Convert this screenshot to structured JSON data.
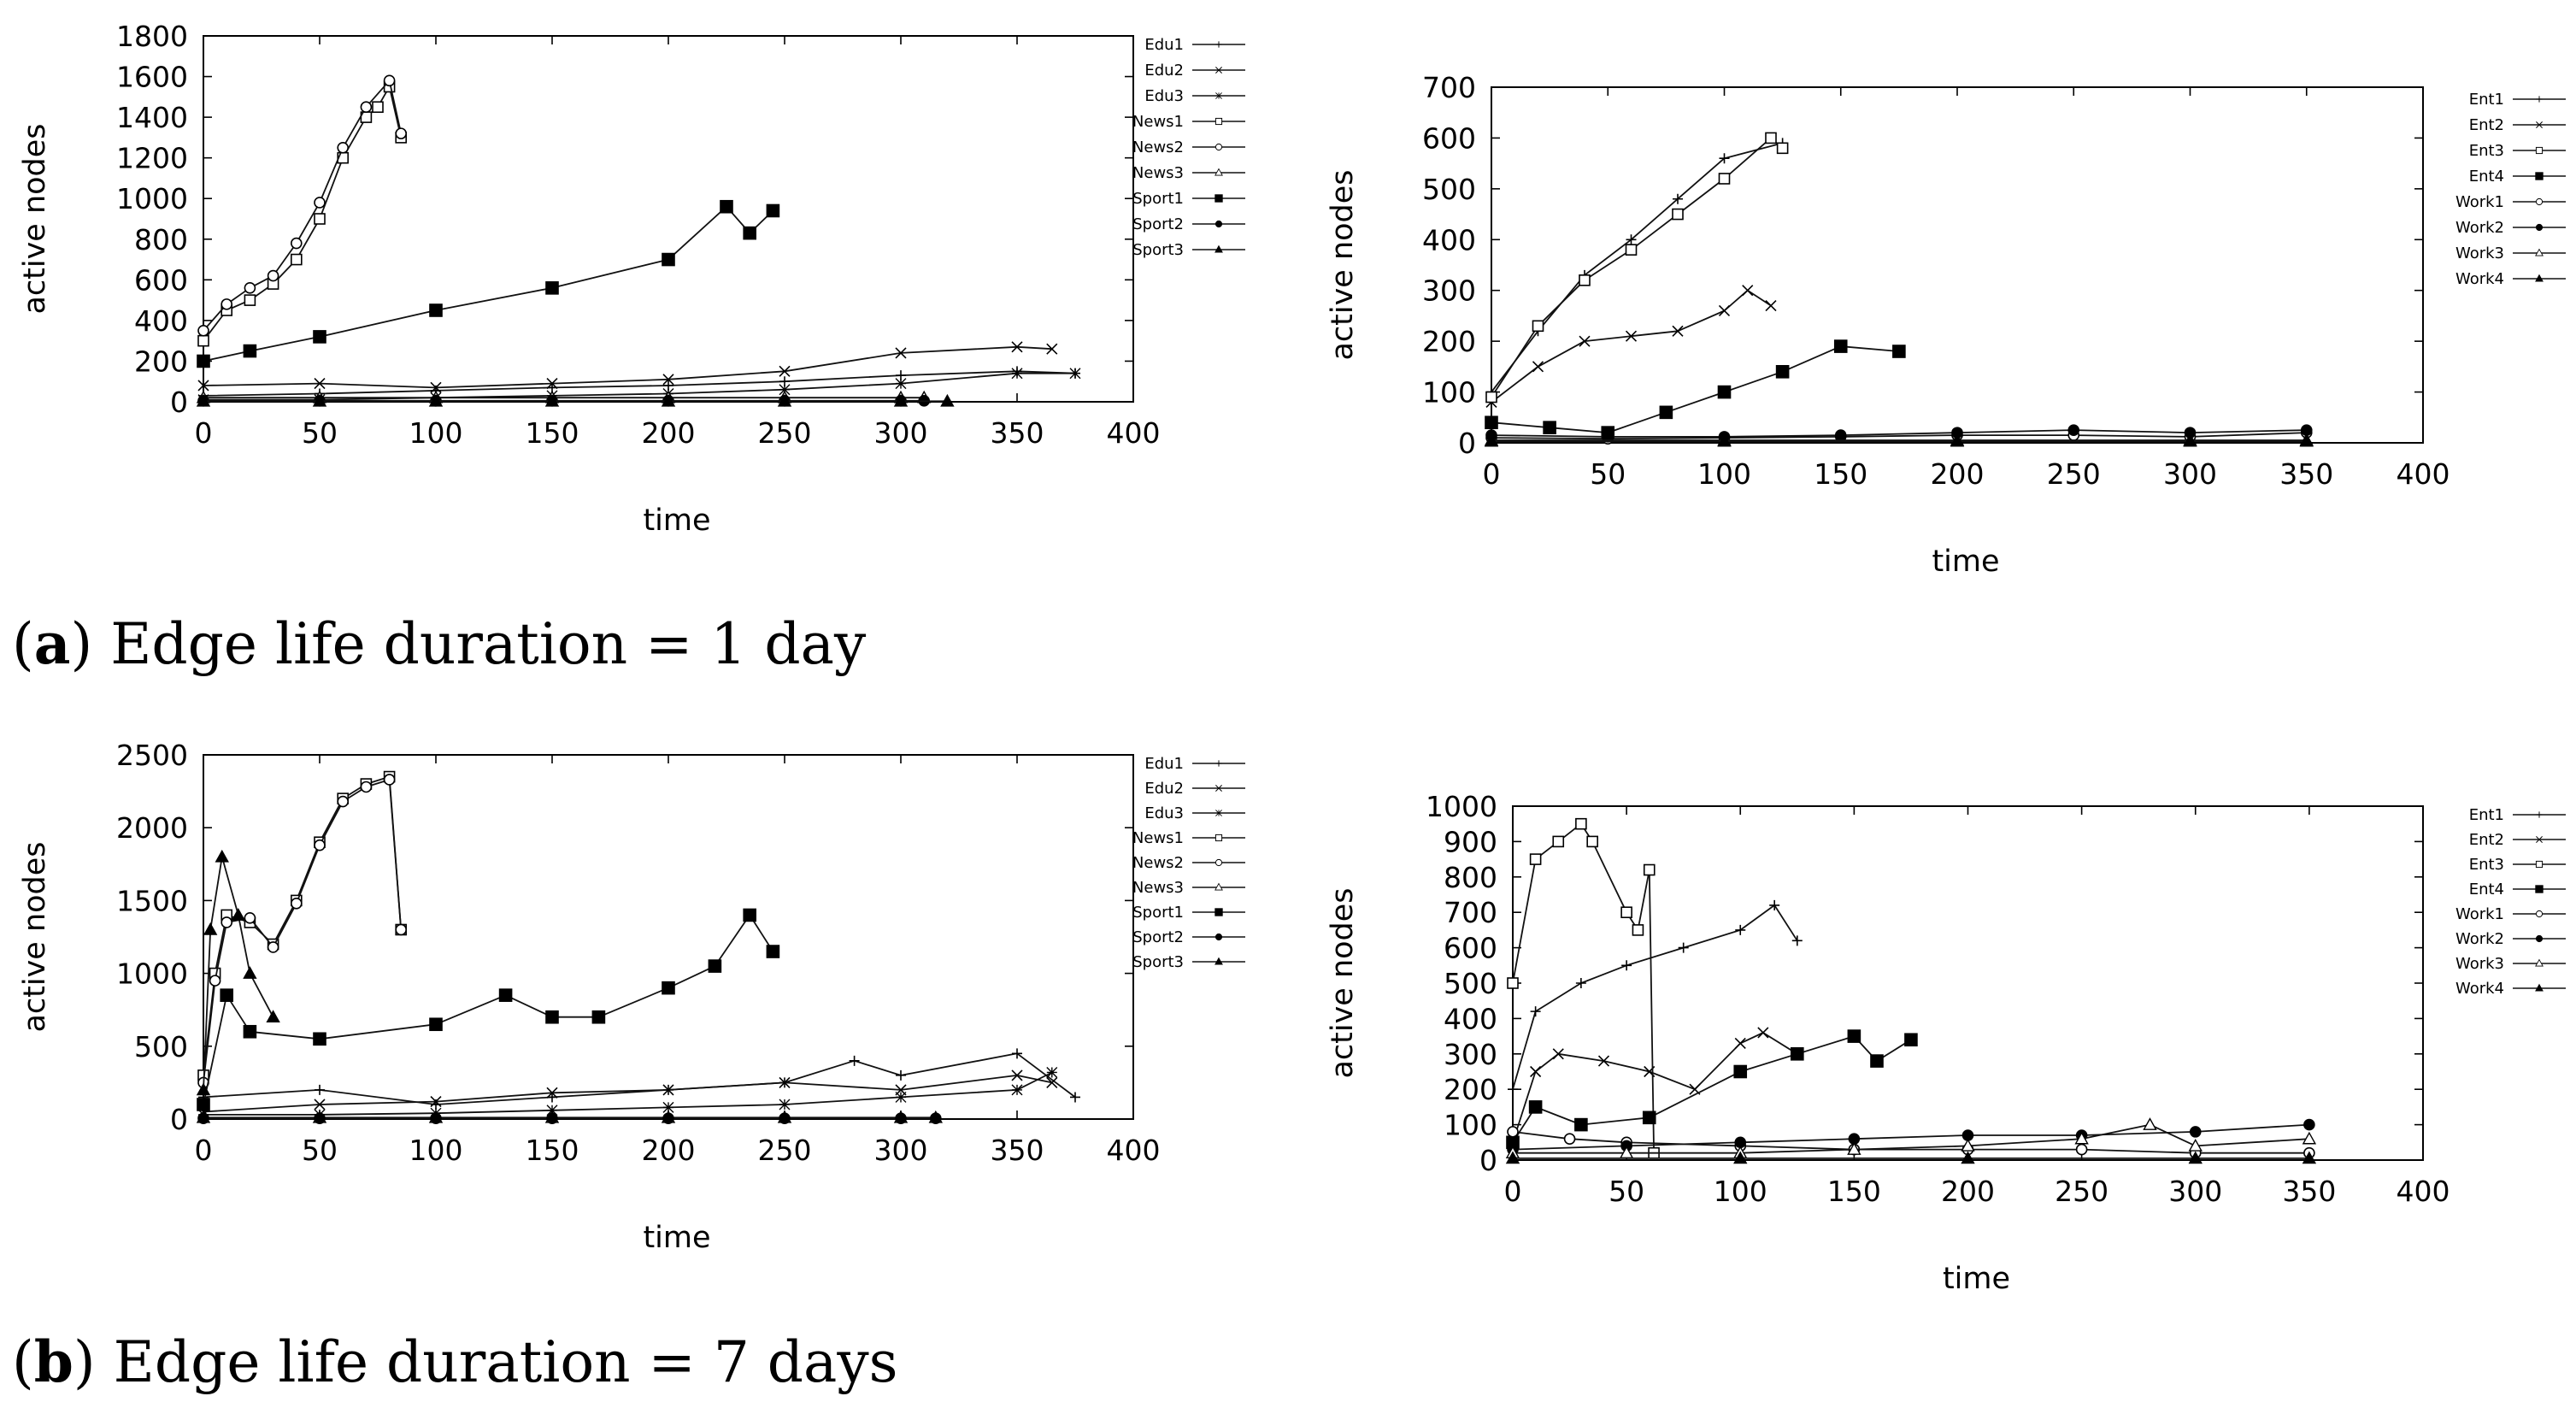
{
  "captions": {
    "a": {
      "label": "a",
      "text": "Edge life duration = 1 day"
    },
    "b": {
      "label": "b",
      "text": "Edge life duration = 7 days"
    }
  },
  "chart_data": [
    {
      "id": "a-left",
      "type": "line",
      "title": "",
      "xlabel": "time",
      "ylabel": "active nodes",
      "xlim": [
        0,
        400
      ],
      "ylim": [
        0,
        1800
      ],
      "xticks": [
        0,
        50,
        100,
        150,
        200,
        250,
        300,
        350,
        400
      ],
      "yticks": [
        0,
        200,
        400,
        600,
        800,
        1000,
        1200,
        1400,
        1600,
        1800
      ],
      "series": [
        {
          "name": "Edu1",
          "marker": "plus",
          "x": [
            0,
            50,
            100,
            150,
            200,
            250,
            300,
            350,
            375
          ],
          "y": [
            30,
            40,
            55,
            70,
            80,
            100,
            130,
            150,
            140
          ]
        },
        {
          "name": "Edu2",
          "marker": "cross",
          "x": [
            0,
            50,
            100,
            150,
            200,
            250,
            300,
            350,
            365
          ],
          "y": [
            80,
            90,
            70,
            90,
            110,
            150,
            240,
            270,
            260
          ]
        },
        {
          "name": "Edu3",
          "marker": "star",
          "x": [
            0,
            50,
            100,
            150,
            200,
            250,
            300,
            350,
            375
          ],
          "y": [
            10,
            10,
            20,
            30,
            40,
            60,
            90,
            140,
            140
          ]
        },
        {
          "name": "News1",
          "marker": "square-open",
          "x": [
            0,
            10,
            20,
            30,
            40,
            50,
            60,
            70,
            75,
            80,
            85
          ],
          "y": [
            300,
            450,
            500,
            580,
            700,
            900,
            1200,
            1400,
            1450,
            1550,
            1300
          ]
        },
        {
          "name": "News2",
          "marker": "circle-open",
          "x": [
            0,
            10,
            20,
            30,
            40,
            50,
            60,
            70,
            80,
            85
          ],
          "y": [
            350,
            480,
            560,
            620,
            780,
            980,
            1250,
            1450,
            1580,
            1320
          ]
        },
        {
          "name": "News3",
          "marker": "triangle-open",
          "x": [
            0,
            50,
            100,
            150,
            200,
            250,
            300,
            310
          ],
          "y": [
            20,
            20,
            20,
            20,
            20,
            20,
            20,
            20
          ]
        },
        {
          "name": "Sport1",
          "marker": "square-filled",
          "x": [
            0,
            20,
            50,
            100,
            150,
            200,
            225,
            235,
            245
          ],
          "y": [
            200,
            250,
            320,
            450,
            560,
            700,
            960,
            830,
            940
          ]
        },
        {
          "name": "Sport2",
          "marker": "circle-filled",
          "x": [
            0,
            50,
            100,
            150,
            200,
            250,
            300,
            310
          ],
          "y": [
            5,
            5,
            5,
            5,
            5,
            5,
            5,
            5
          ]
        },
        {
          "name": "Sport3",
          "marker": "triangle-filled",
          "x": [
            0,
            50,
            100,
            150,
            200,
            250,
            300,
            320
          ],
          "y": [
            3,
            3,
            3,
            3,
            3,
            3,
            3,
            3
          ]
        }
      ]
    },
    {
      "id": "a-right",
      "type": "line",
      "title": "",
      "xlabel": "time",
      "ylabel": "active nodes",
      "xlim": [
        0,
        400
      ],
      "ylim": [
        0,
        700
      ],
      "xticks": [
        0,
        50,
        100,
        150,
        200,
        250,
        300,
        350,
        400
      ],
      "yticks": [
        0,
        100,
        200,
        300,
        400,
        500,
        600,
        700
      ],
      "series": [
        {
          "name": "Ent1",
          "marker": "plus",
          "x": [
            0,
            20,
            40,
            60,
            80,
            100,
            125
          ],
          "y": [
            100,
            220,
            330,
            400,
            480,
            560,
            590
          ]
        },
        {
          "name": "Ent2",
          "marker": "cross",
          "x": [
            0,
            20,
            40,
            60,
            80,
            100,
            110,
            120
          ],
          "y": [
            80,
            150,
            200,
            210,
            220,
            260,
            300,
            270
          ]
        },
        {
          "name": "Ent3",
          "marker": "square-open",
          "x": [
            0,
            20,
            40,
            60,
            80,
            100,
            120,
            125
          ],
          "y": [
            90,
            230,
            320,
            380,
            450,
            520,
            600,
            580
          ]
        },
        {
          "name": "Ent4",
          "marker": "square-filled",
          "x": [
            0,
            25,
            50,
            75,
            100,
            125,
            150,
            175
          ],
          "y": [
            40,
            30,
            20,
            60,
            100,
            140,
            190,
            180
          ]
        },
        {
          "name": "Work1",
          "marker": "circle-open",
          "x": [
            0,
            50,
            100,
            150,
            200,
            250,
            300,
            350
          ],
          "y": [
            10,
            8,
            10,
            12,
            15,
            15,
            12,
            20
          ]
        },
        {
          "name": "Work2",
          "marker": "circle-filled",
          "x": [
            0,
            50,
            100,
            150,
            200,
            250,
            300,
            350
          ],
          "y": [
            15,
            12,
            12,
            15,
            20,
            25,
            20,
            25
          ]
        },
        {
          "name": "Work3",
          "marker": "triangle-open",
          "x": [
            0,
            100,
            200,
            300,
            350
          ],
          "y": [
            5,
            5,
            5,
            5,
            5
          ]
        },
        {
          "name": "Work4",
          "marker": "triangle-filled",
          "x": [
            0,
            100,
            200,
            300,
            350
          ],
          "y": [
            3,
            3,
            3,
            3,
            3
          ]
        }
      ]
    },
    {
      "id": "b-left",
      "type": "line",
      "title": "",
      "xlabel": "time",
      "ylabel": "active nodes",
      "xlim": [
        0,
        400
      ],
      "ylim": [
        0,
        2500
      ],
      "xticks": [
        0,
        50,
        100,
        150,
        200,
        250,
        300,
        350,
        400
      ],
      "yticks": [
        0,
        500,
        1000,
        1500,
        2000,
        2500
      ],
      "series": [
        {
          "name": "Edu1",
          "marker": "plus",
          "x": [
            0,
            50,
            100,
            150,
            200,
            250,
            280,
            300,
            350,
            375
          ],
          "y": [
            150,
            200,
            100,
            150,
            200,
            250,
            400,
            300,
            450,
            150
          ]
        },
        {
          "name": "Edu2",
          "marker": "cross",
          "x": [
            0,
            50,
            100,
            150,
            200,
            250,
            300,
            350,
            365
          ],
          "y": [
            50,
            100,
            120,
            180,
            200,
            250,
            200,
            300,
            250
          ]
        },
        {
          "name": "Edu3",
          "marker": "star",
          "x": [
            0,
            50,
            100,
            150,
            200,
            250,
            300,
            350,
            365
          ],
          "y": [
            30,
            30,
            40,
            60,
            80,
            100,
            150,
            200,
            320
          ]
        },
        {
          "name": "News1",
          "marker": "square-open",
          "x": [
            0,
            5,
            10,
            20,
            30,
            40,
            50,
            60,
            70,
            80,
            85
          ],
          "y": [
            300,
            1000,
            1400,
            1350,
            1200,
            1500,
            1900,
            2200,
            2300,
            2350,
            1300
          ]
        },
        {
          "name": "News2",
          "marker": "circle-open",
          "x": [
            0,
            5,
            10,
            20,
            30,
            40,
            50,
            60,
            70,
            80,
            85
          ],
          "y": [
            250,
            950,
            1350,
            1380,
            1180,
            1480,
            1880,
            2180,
            2280,
            2330,
            1300
          ]
        },
        {
          "name": "News3",
          "marker": "triangle-open",
          "x": [
            0,
            50,
            100,
            150,
            200,
            250,
            300,
            315
          ],
          "y": [
            10,
            10,
            10,
            10,
            10,
            10,
            10,
            10
          ]
        },
        {
          "name": "Sport1",
          "marker": "square-filled",
          "x": [
            0,
            10,
            20,
            50,
            100,
            130,
            150,
            170,
            200,
            220,
            235,
            245
          ],
          "y": [
            100,
            850,
            600,
            550,
            650,
            850,
            700,
            700,
            900,
            1050,
            1400,
            1150
          ]
        },
        {
          "name": "Sport2",
          "marker": "circle-filled",
          "x": [
            0,
            50,
            100,
            150,
            200,
            250,
            300,
            315
          ],
          "y": [
            5,
            5,
            5,
            5,
            5,
            5,
            5,
            5
          ]
        },
        {
          "name": "Sport3",
          "marker": "triangle-filled",
          "x": [
            0,
            3,
            8,
            15,
            20,
            30
          ],
          "y": [
            200,
            1300,
            1800,
            1400,
            1000,
            700
          ]
        }
      ]
    },
    {
      "id": "b-right",
      "type": "line",
      "title": "",
      "xlabel": "time",
      "ylabel": "active nodes",
      "xlim": [
        0,
        400
      ],
      "ylim": [
        0,
        1000
      ],
      "xticks": [
        0,
        50,
        100,
        150,
        200,
        250,
        300,
        350,
        400
      ],
      "yticks": [
        0,
        100,
        200,
        300,
        400,
        500,
        600,
        700,
        800,
        900,
        1000
      ],
      "series": [
        {
          "name": "Ent1",
          "marker": "plus",
          "x": [
            0,
            10,
            30,
            50,
            75,
            100,
            115,
            125
          ],
          "y": [
            200,
            420,
            500,
            550,
            600,
            650,
            720,
            620
          ]
        },
        {
          "name": "Ent2",
          "marker": "cross",
          "x": [
            0,
            10,
            20,
            40,
            60,
            80,
            100,
            110,
            125
          ],
          "y": [
            50,
            250,
            300,
            280,
            250,
            200,
            330,
            360,
            300
          ]
        },
        {
          "name": "Ent3",
          "marker": "square-open",
          "x": [
            0,
            10,
            20,
            30,
            35,
            50,
            55,
            60,
            62
          ],
          "y": [
            500,
            850,
            900,
            950,
            900,
            700,
            650,
            820,
            20
          ]
        },
        {
          "name": "Ent4",
          "marker": "square-filled",
          "x": [
            0,
            10,
            30,
            60,
            100,
            125,
            150,
            160,
            175
          ],
          "y": [
            50,
            150,
            100,
            120,
            250,
            300,
            350,
            280,
            340
          ]
        },
        {
          "name": "Work1",
          "marker": "circle-open",
          "x": [
            0,
            25,
            50,
            100,
            150,
            200,
            250,
            300,
            350
          ],
          "y": [
            80,
            60,
            50,
            40,
            30,
            30,
            30,
            20,
            20
          ]
        },
        {
          "name": "Work2",
          "marker": "circle-filled",
          "x": [
            0,
            50,
            100,
            150,
            200,
            250,
            300,
            350
          ],
          "y": [
            30,
            40,
            50,
            60,
            70,
            70,
            80,
            100
          ]
        },
        {
          "name": "Work3",
          "marker": "triangle-open",
          "x": [
            0,
            50,
            100,
            150,
            200,
            250,
            280,
            300,
            350
          ],
          "y": [
            20,
            20,
            20,
            30,
            40,
            60,
            100,
            40,
            60
          ]
        },
        {
          "name": "Work4",
          "marker": "triangle-filled",
          "x": [
            0,
            100,
            200,
            300,
            350
          ],
          "y": [
            5,
            5,
            5,
            5,
            5
          ]
        }
      ]
    }
  ]
}
